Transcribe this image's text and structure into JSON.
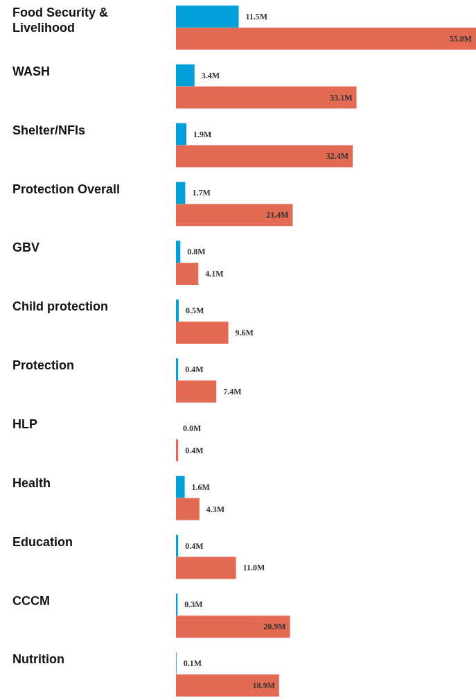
{
  "chart_data": {
    "type": "bar",
    "orientation": "horizontal",
    "categories": [
      "Food Security & Livelihood",
      "WASH",
      "Shelter/NFIs",
      "Protection Overall",
      "GBV",
      "Child protection",
      "Protection",
      "HLP",
      "Health",
      "Education",
      "CCCM",
      "Nutrition"
    ],
    "series": [
      {
        "color": "#009fda",
        "values": [
          11.5,
          3.4,
          1.9,
          1.7,
          0.8,
          0.5,
          0.4,
          0.0,
          1.6,
          0.4,
          0.3,
          0.1
        ],
        "value_labels": [
          "11.5M",
          "3.4M",
          "1.9M",
          "1.7M",
          "0.8M",
          "0.5M",
          "0.4M",
          "0.0M",
          "1.6M",
          "0.4M",
          "0.3M",
          "0.1M"
        ]
      },
      {
        "color": "#e36a53",
        "values": [
          55.0,
          33.1,
          32.4,
          21.4,
          4.1,
          9.6,
          7.4,
          0.4,
          4.3,
          11.0,
          20.9,
          18.9
        ],
        "value_labels": [
          "55.0M",
          "33.1M",
          "32.4M",
          "21.4M",
          "4.1M",
          "9.6M",
          "7.4M",
          "0.4M",
          "4.3M",
          "11.0M",
          "20.9M",
          "18.9M"
        ]
      }
    ]
  }
}
